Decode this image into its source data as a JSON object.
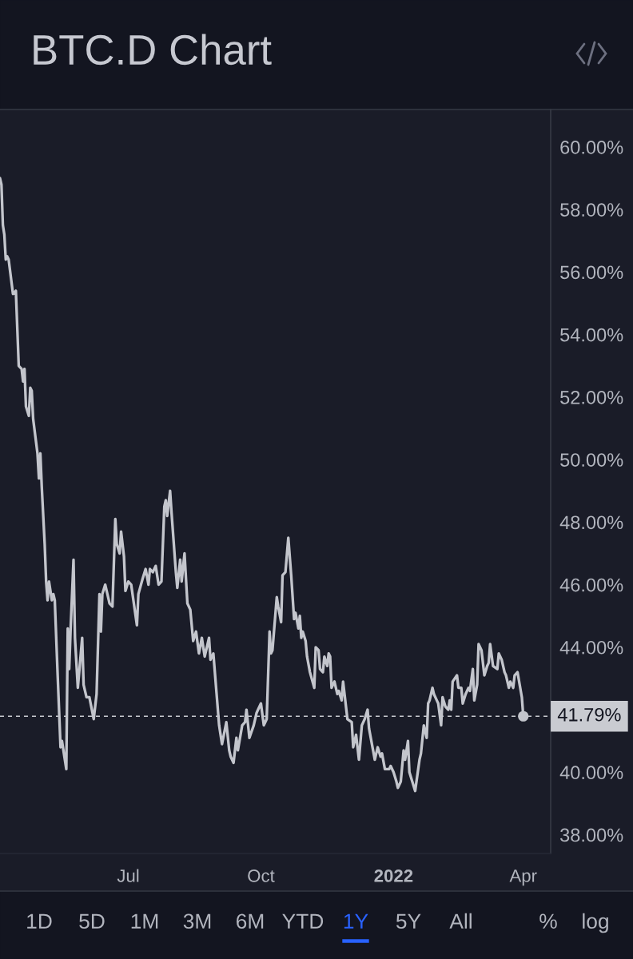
{
  "chart_data": {
    "type": "line",
    "title": "BTC.D Chart",
    "x": [
      "2021-04-03",
      "2021-04-04",
      "2021-04-05",
      "2021-04-06",
      "2021-04-07",
      "2021-04-08",
      "2021-04-09",
      "2021-04-12",
      "2021-04-14",
      "2021-04-16",
      "2021-04-18",
      "2021-04-19",
      "2021-04-20",
      "2021-04-21",
      "2021-04-23",
      "2021-04-24",
      "2021-04-25",
      "2021-04-26",
      "2021-04-29",
      "2021-04-30",
      "2021-05-01",
      "2021-05-02",
      "2021-05-04",
      "2021-05-05",
      "2021-05-06",
      "2021-05-07",
      "2021-05-09",
      "2021-05-10",
      "2021-05-11",
      "2021-05-13",
      "2021-05-15",
      "2021-05-16",
      "2021-05-19",
      "2021-05-20",
      "2021-05-21",
      "2021-05-22",
      "2021-05-24",
      "2021-05-25",
      "2021-05-27",
      "2021-05-30",
      "2021-05-31",
      "2021-06-02",
      "2021-06-04",
      "2021-06-07",
      "2021-06-09",
      "2021-06-11",
      "2021-06-12",
      "2021-06-13",
      "2021-06-15",
      "2021-06-18",
      "2021-06-20",
      "2021-06-22",
      "2021-06-23",
      "2021-06-25",
      "2021-06-26",
      "2021-06-28",
      "2021-06-29",
      "2021-07-01",
      "2021-07-03",
      "2021-07-07",
      "2021-07-08",
      "2021-07-11",
      "2021-07-13",
      "2021-07-15",
      "2021-07-16",
      "2021-07-18",
      "2021-07-20",
      "2021-07-22",
      "2021-07-24",
      "2021-07-26",
      "2021-07-27",
      "2021-07-28",
      "2021-07-30",
      "2021-07-31",
      "2021-08-03",
      "2021-08-04",
      "2021-08-06",
      "2021-08-07",
      "2021-08-09",
      "2021-08-11",
      "2021-08-13",
      "2021-08-15",
      "2021-08-17",
      "2021-08-19",
      "2021-08-21",
      "2021-08-23",
      "2021-08-26",
      "2021-08-27",
      "2021-08-29",
      "2021-09-02",
      "2021-09-04",
      "2021-09-07",
      "2021-09-09",
      "2021-09-10",
      "2021-09-12",
      "2021-09-14",
      "2021-09-15",
      "2021-09-18",
      "2021-09-20",
      "2021-09-21",
      "2021-09-23",
      "2021-09-26",
      "2021-09-28",
      "2021-09-29",
      "2021-10-01",
      "2021-10-03",
      "2021-10-05",
      "2021-10-07",
      "2021-10-08",
      "2021-10-09",
      "2021-10-12",
      "2021-10-13",
      "2021-10-15",
      "2021-10-16",
      "2021-10-18",
      "2021-10-20",
      "2021-10-22",
      "2021-10-24",
      "2021-10-25",
      "2021-10-27",
      "2021-10-28",
      "2021-10-29",
      "2021-10-30",
      "2021-11-01",
      "2021-11-02",
      "2021-11-04",
      "2021-11-07",
      "2021-11-08",
      "2021-11-10",
      "2021-11-11",
      "2021-11-13",
      "2021-11-14",
      "2021-11-16",
      "2021-11-17",
      "2021-11-18",
      "2021-11-19",
      "2021-11-21",
      "2021-11-23",
      "2021-11-24",
      "2021-11-26",
      "2021-11-27",
      "2021-11-30",
      "2021-12-03",
      "2021-12-04",
      "2021-12-06",
      "2021-12-08",
      "2021-12-10",
      "2021-12-12",
      "2021-12-14",
      "2021-12-15",
      "2021-12-17",
      "2021-12-19",
      "2021-12-21",
      "2021-12-23",
      "2021-12-24",
      "2021-12-26",
      "2021-12-29",
      "2021-12-30",
      "2022-01-01",
      "2022-01-03",
      "2022-01-04",
      "2022-01-06",
      "2022-01-08",
      "2022-01-09",
      "2022-01-11",
      "2022-01-12",
      "2022-01-14",
      "2022-01-16",
      "2022-01-19",
      "2022-01-20",
      "2022-01-22",
      "2022-01-24",
      "2022-01-25",
      "2022-01-26",
      "2022-01-28",
      "2022-01-29",
      "2022-01-31",
      "2022-02-01",
      "2022-02-03",
      "2022-02-04",
      "2022-02-06",
      "2022-02-08",
      "2022-02-09",
      "2022-02-10",
      "2022-02-11",
      "2022-02-14",
      "2022-02-15",
      "2022-02-17",
      "2022-02-18",
      "2022-02-20",
      "2022-02-22",
      "2022-02-23",
      "2022-02-25",
      "2022-02-26",
      "2022-02-28",
      "2022-03-01",
      "2022-03-03",
      "2022-03-05",
      "2022-03-07",
      "2022-03-08",
      "2022-03-09",
      "2022-03-11",
      "2022-03-14",
      "2022-03-15",
      "2022-03-17",
      "2022-03-19",
      "2022-03-20",
      "2022-03-22",
      "2022-03-23",
      "2022-03-25",
      "2022-03-26",
      "2022-03-28",
      "2022-03-31",
      "2022-04-01"
    ],
    "series": [
      {
        "color": "#c3c5cc",
        "values": [
          59.0,
          58.8,
          57.5,
          57.2,
          56.4,
          56.5,
          56.4,
          55.3,
          55.4,
          53.0,
          52.9,
          52.5,
          52.9,
          51.7,
          51.4,
          52.3,
          52.2,
          51.3,
          50.2,
          49.4,
          50.2,
          49.1,
          47.3,
          46.1,
          45.5,
          46.1,
          45.5,
          45.7,
          45.5,
          43.1,
          40.8,
          41.0,
          40.1,
          44.6,
          43.3,
          44.6,
          46.8,
          44.3,
          42.7,
          44.3,
          42.8,
          42.4,
          42.4,
          41.7,
          42.5,
          45.7,
          44.5,
          45.7,
          46.0,
          45.4,
          45.3,
          48.1,
          47.3,
          47.0,
          47.7,
          46.9,
          45.8,
          46.1,
          46.0,
          44.7,
          45.7,
          46.2,
          46.5,
          46.0,
          46.5,
          46.4,
          46.6,
          46.0,
          46.1,
          48.5,
          48.7,
          48.2,
          49.0,
          48.3,
          46.4,
          45.9,
          46.8,
          46.1,
          47.0,
          45.4,
          45.2,
          44.2,
          44.5,
          43.8,
          44.3,
          43.7,
          44.3,
          43.6,
          43.8,
          41.5,
          40.9,
          41.6,
          40.7,
          40.5,
          40.3,
          41.1,
          40.7,
          41.5,
          41.6,
          42.0,
          41.1,
          41.5,
          41.9,
          42.0,
          42.2,
          41.5,
          41.7,
          44.5,
          43.8,
          43.9,
          45.6,
          45.3,
          44.8,
          46.3,
          46.4,
          47.5,
          46.3,
          44.9,
          45.1,
          44.6,
          45.0,
          44.3,
          44.5,
          44.2,
          43.7,
          43.2,
          42.7,
          44.0,
          43.9,
          43.3,
          43.2,
          43.7,
          43.4,
          43.8,
          43.7,
          42.7,
          42.9,
          42.5,
          42.6,
          42.3,
          42.9,
          41.7,
          41.6,
          40.8,
          41.2,
          40.4,
          41.5,
          41.7,
          42.0,
          41.4,
          40.9,
          40.4,
          40.8,
          40.5,
          40.6,
          40.1,
          40.1,
          40.2,
          40.0,
          39.7,
          39.5,
          39.7,
          40.7,
          40.4,
          41.0,
          40.0,
          39.7,
          39.4,
          40.4,
          40.6,
          41.5,
          41.1,
          42.2,
          42.3,
          42.7,
          42.5,
          42.3,
          42.2,
          41.5,
          42.4,
          42.1,
          42.0,
          42.3,
          42.0,
          42.9,
          43.1,
          42.7,
          42.7,
          42.2,
          42.5,
          42.7,
          42.6,
          43.3,
          42.3,
          42.8,
          44.1,
          43.9,
          43.1,
          43.4,
          43.5,
          44.1,
          43.4,
          43.3,
          43.8,
          43.6,
          43.2,
          43.1,
          42.7,
          42.9,
          42.7,
          43.1,
          43.2,
          42.4,
          41.79
        ]
      },
      {
        "type": "scatter",
        "x": [
          "2022-04-01"
        ],
        "values": [
          41.79
        ],
        "color": "#c3c5cc",
        "marker": "circle"
      }
    ],
    "xlim": [
      "2021-04-03",
      "2022-04-20"
    ],
    "xticks": [
      {
        "value": "2021-07-01",
        "label": "Jul"
      },
      {
        "value": "2021-10-01",
        "label": "Oct"
      },
      {
        "value": "2022-01-01",
        "label": "2022"
      },
      {
        "value": "2022-04-01",
        "label": "Apr"
      }
    ],
    "ylim": [
      37.4,
      61.2
    ],
    "yticks": [
      {
        "value": 38,
        "label": "38.00%"
      },
      {
        "value": 40,
        "label": "40.00%"
      },
      {
        "value": 44,
        "label": "44.00%"
      },
      {
        "value": 46,
        "label": "46.00%"
      },
      {
        "value": 48,
        "label": "48.00%"
      },
      {
        "value": 50,
        "label": "50.00%"
      },
      {
        "value": 52,
        "label": "52.00%"
      },
      {
        "value": 54,
        "label": "54.00%"
      },
      {
        "value": 56,
        "label": "56.00%"
      },
      {
        "value": 58,
        "label": "58.00%"
      },
      {
        "value": 60,
        "label": "60.00%"
      }
    ],
    "ref_lines": [
      {
        "axis": "y",
        "value": 41.79,
        "label": "41.79%",
        "color": "#c9cbd1",
        "line_style": "dashed"
      }
    ],
    "grid": false,
    "annotations": [
      "1D",
      "5D",
      "1M",
      "3M",
      "6M",
      "YTD",
      "1Y",
      "5Y",
      "All",
      "%",
      "log"
    ]
  }
}
